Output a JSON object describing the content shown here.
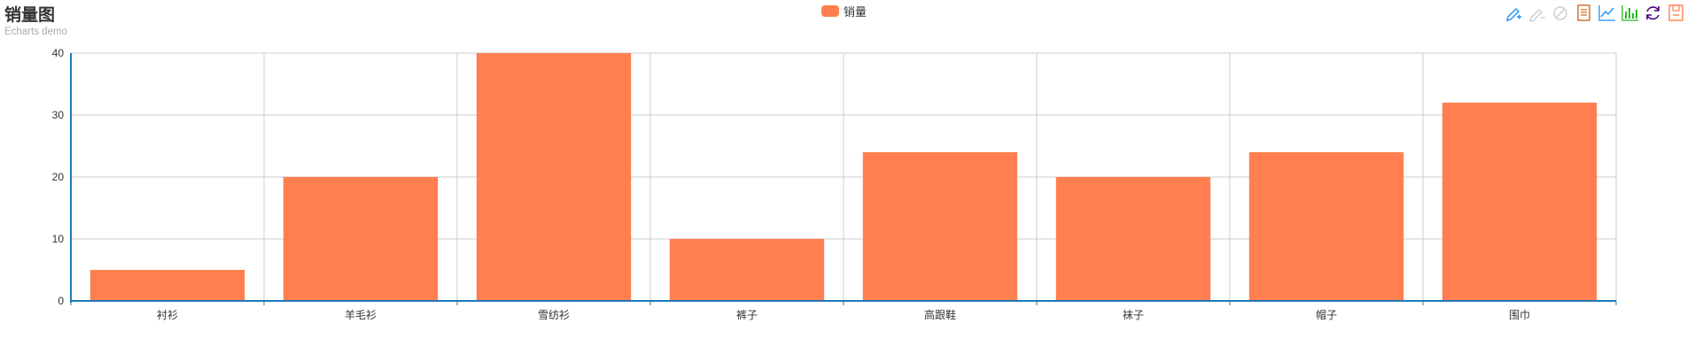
{
  "title": "销量图",
  "subtitle": "Echarts demo",
  "legend": {
    "label": "销量",
    "color": "#ff7f50"
  },
  "toolbox": [
    {
      "icon": "mark-pen-icon",
      "color": "#1e90ff"
    },
    {
      "icon": "mark-undo-icon",
      "color": "#22bb22"
    },
    {
      "icon": "mark-clear-icon",
      "color": "#4b0082"
    },
    {
      "icon": "data-view-icon",
      "color": "#d2691e"
    },
    {
      "icon": "line-chart-icon",
      "color": "#1e90ff"
    },
    {
      "icon": "bar-chart-icon",
      "color": "#22bb22"
    },
    {
      "icon": "restore-icon",
      "color": "#4b0082"
    },
    {
      "icon": "save-image-icon",
      "color": "#ff7f50"
    }
  ],
  "chart_data": {
    "type": "bar",
    "categories": [
      "衬衫",
      "羊毛衫",
      "雪纺衫",
      "裤子",
      "高跟鞋",
      "袜子",
      "帽子",
      "围巾"
    ],
    "series": [
      {
        "name": "销量",
        "values": [
          5,
          20,
          40,
          10,
          24,
          20,
          24,
          32
        ]
      }
    ],
    "ylim": [
      0,
      40
    ],
    "yticks": [
      0,
      10,
      20,
      30,
      40
    ],
    "grid": true,
    "legend_position": "top-center",
    "colors": {
      "bar": "#ff7f50",
      "axis": "#1f78b4",
      "grid": "#cccccc"
    }
  }
}
